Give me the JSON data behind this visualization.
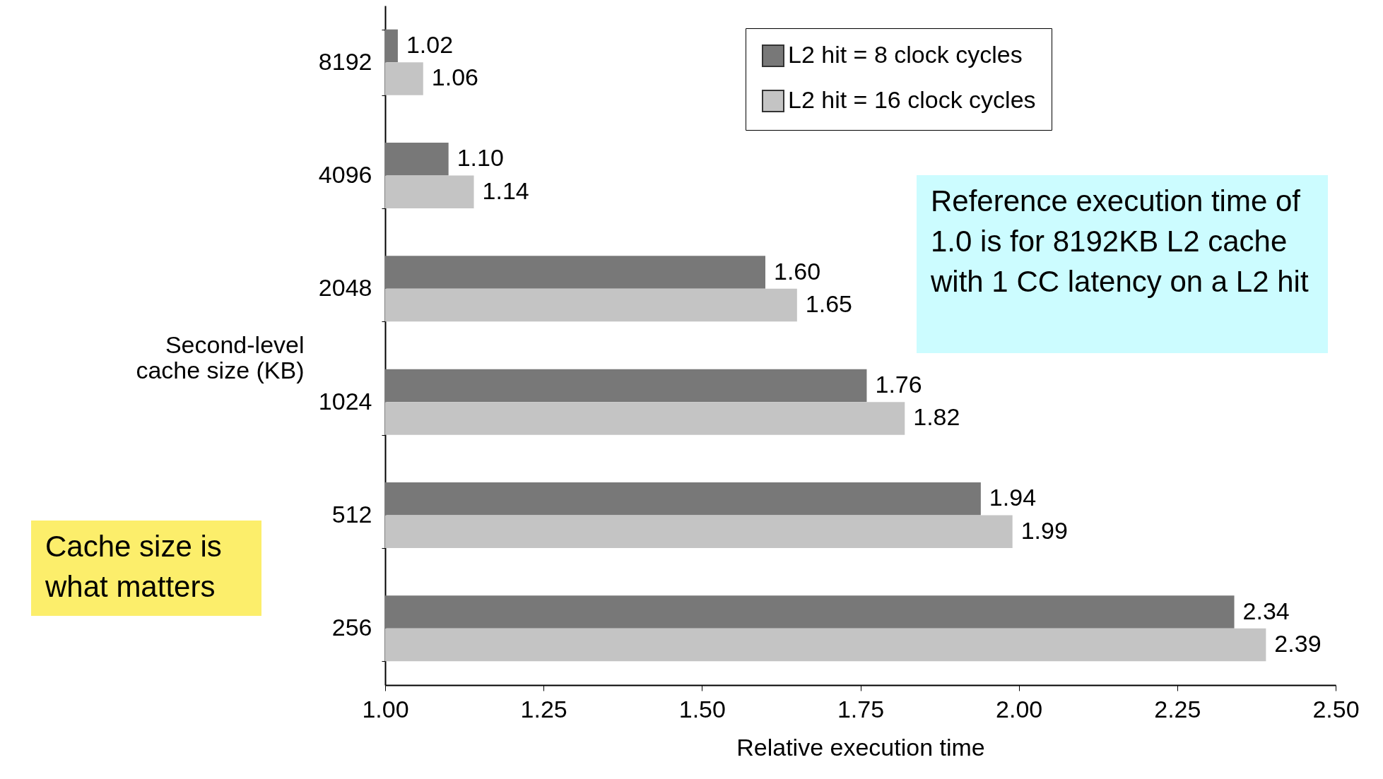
{
  "chart_data": {
    "type": "bar",
    "orientation": "horizontal",
    "xlabel": "Relative execution time",
    "ylabel": "Second-level cache size (KB)",
    "categories": [
      "8192",
      "4096",
      "2048",
      "1024",
      "512",
      "256"
    ],
    "series": [
      {
        "name": "L2 hit = 8 clock cycles",
        "color": "#787878",
        "values": [
          1.02,
          1.1,
          1.6,
          1.76,
          1.94,
          2.34
        ],
        "value_labels": [
          "1.02",
          "1.10",
          "1.60",
          "1.76",
          "1.94",
          "2.34"
        ]
      },
      {
        "name": "L2 hit = 16 clock cycles",
        "color": "#c4c4c4",
        "values": [
          1.06,
          1.14,
          1.65,
          1.82,
          1.99,
          2.39
        ],
        "value_labels": [
          "1.06",
          "1.14",
          "1.65",
          "1.82",
          "1.99",
          "2.39"
        ]
      }
    ],
    "xlim": [
      1.0,
      2.5
    ],
    "xticks": [
      {
        "value": 1.0,
        "label": "1.00"
      },
      {
        "value": 1.25,
        "label": "1.25"
      },
      {
        "value": 1.5,
        "label": "1.50"
      },
      {
        "value": 1.75,
        "label": "1.75"
      },
      {
        "value": 2.0,
        "label": "2.00"
      },
      {
        "value": 2.25,
        "label": "2.25"
      },
      {
        "value": 2.5,
        "label": "2.50"
      }
    ],
    "grid": false,
    "legend": "top right",
    "annotations": [
      "Reference execution time of 1.0 is for 8192KB L2 cache with 1 CC latency on a L2 hit",
      "Cache size is what matters"
    ]
  }
}
